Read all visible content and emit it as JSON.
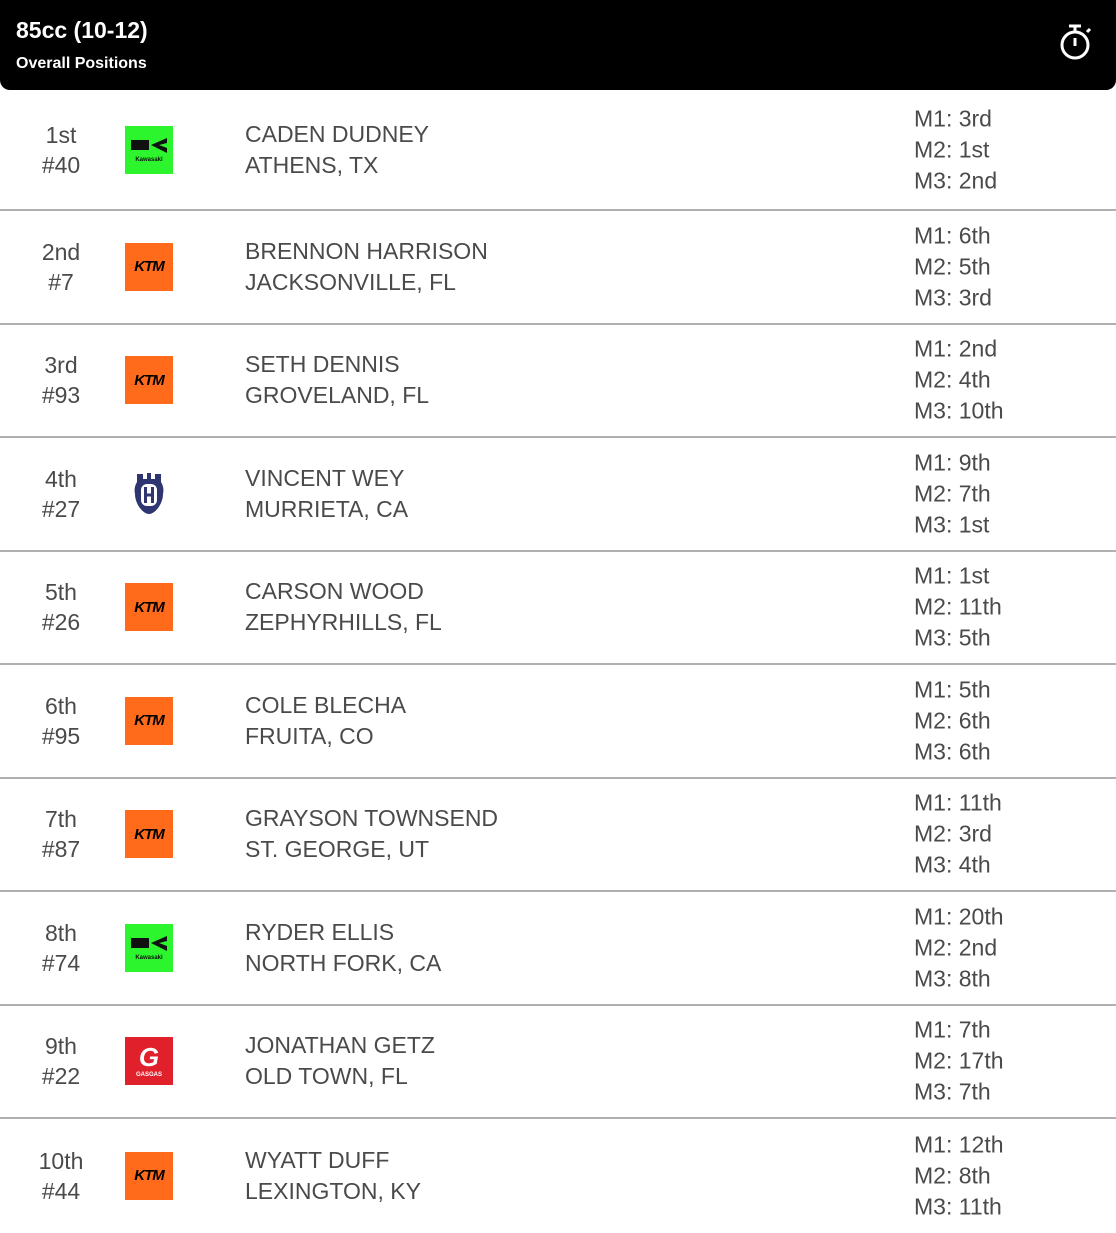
{
  "header": {
    "title": "85cc (10-12)",
    "subtitle": "Overall Positions",
    "icon": "stopwatch-icon"
  },
  "brand_colors": {
    "kawasaki": "#2df52d",
    "ktm": "#ff6b1a",
    "husqvarna": "#2e3570",
    "gasgas": "#e0202b"
  },
  "riders": [
    {
      "place": "1st",
      "number": "#40",
      "brand": "Kawasaki",
      "name": "CADEN DUDNEY",
      "hometown": "ATHENS, TX",
      "motos": [
        "M1: 3rd",
        "M2: 1st",
        "M3: 2nd"
      ]
    },
    {
      "place": "2nd",
      "number": "#7",
      "brand": "KTM",
      "name": "BRENNON HARRISON",
      "hometown": "JACKSONVILLE, FL",
      "motos": [
        "M1: 6th",
        "M2: 5th",
        "M3: 3rd"
      ]
    },
    {
      "place": "3rd",
      "number": "#93",
      "brand": "KTM",
      "name": "SETH DENNIS",
      "hometown": "GROVELAND, FL",
      "motos": [
        "M1: 2nd",
        "M2: 4th",
        "M3: 10th"
      ]
    },
    {
      "place": "4th",
      "number": "#27",
      "brand": "Husqvarna",
      "name": "VINCENT WEY",
      "hometown": "MURRIETA, CA",
      "motos": [
        "M1: 9th",
        "M2: 7th",
        "M3: 1st"
      ]
    },
    {
      "place": "5th",
      "number": "#26",
      "brand": "KTM",
      "name": "CARSON WOOD",
      "hometown": "ZEPHYRHILLS, FL",
      "motos": [
        "M1: 1st",
        "M2: 11th",
        "M3: 5th"
      ]
    },
    {
      "place": "6th",
      "number": "#95",
      "brand": "KTM",
      "name": "COLE BLECHA",
      "hometown": "FRUITA, CO",
      "motos": [
        "M1: 5th",
        "M2: 6th",
        "M3: 6th"
      ]
    },
    {
      "place": "7th",
      "number": "#87",
      "brand": "KTM",
      "name": "GRAYSON TOWNSEND",
      "hometown": "ST. GEORGE, UT",
      "motos": [
        "M1: 11th",
        "M2: 3rd",
        "M3: 4th"
      ]
    },
    {
      "place": "8th",
      "number": "#74",
      "brand": "Kawasaki",
      "name": "RYDER ELLIS",
      "hometown": "NORTH FORK, CA",
      "motos": [
        "M1: 20th",
        "M2: 2nd",
        "M3: 8th"
      ]
    },
    {
      "place": "9th",
      "number": "#22",
      "brand": "GASGAS",
      "name": "JONATHAN GETZ",
      "hometown": "OLD TOWN, FL",
      "motos": [
        "M1: 7th",
        "M2: 17th",
        "M3: 7th"
      ]
    },
    {
      "place": "10th",
      "number": "#44",
      "brand": "KTM",
      "name": "WYATT DUFF",
      "hometown": "LEXINGTON, KY",
      "motos": [
        "M1: 12th",
        "M2: 8th",
        "M3: 11th"
      ]
    }
  ]
}
